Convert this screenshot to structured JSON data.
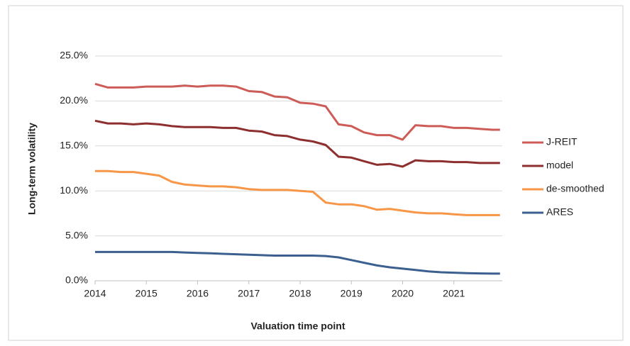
{
  "chart_data": {
    "type": "line",
    "x_label": "Valuation time point",
    "y_label": "Long-term volatility",
    "x": [
      2014,
      2014.25,
      2014.5,
      2014.75,
      2015,
      2015.25,
      2015.5,
      2015.75,
      2016,
      2016.25,
      2016.5,
      2016.75,
      2017,
      2017.25,
      2017.5,
      2017.75,
      2018,
      2018.25,
      2018.5,
      2018.75,
      2019,
      2019.25,
      2019.5,
      2019.75,
      2020,
      2020.25,
      2020.5,
      2020.75,
      2021,
      2021.25,
      2021.5,
      2021.75,
      2021.9
    ],
    "series": [
      {
        "name": "J-REIT",
        "color": "#cd5c57",
        "values": [
          21.9,
          21.5,
          21.5,
          21.5,
          21.6,
          21.6,
          21.6,
          21.7,
          21.6,
          21.7,
          21.7,
          21.6,
          21.1,
          21.0,
          20.5,
          20.4,
          19.8,
          19.7,
          19.4,
          17.4,
          17.2,
          16.5,
          16.2,
          16.2,
          15.7,
          17.3,
          17.2,
          17.2,
          17.0,
          17.0,
          16.9,
          16.8,
          16.8
        ]
      },
      {
        "name": "model",
        "color": "#8e2f2f",
        "values": [
          17.8,
          17.5,
          17.5,
          17.4,
          17.5,
          17.4,
          17.2,
          17.1,
          17.1,
          17.1,
          17.0,
          17.0,
          16.7,
          16.6,
          16.2,
          16.1,
          15.7,
          15.5,
          15.1,
          13.8,
          13.7,
          13.3,
          12.9,
          13.0,
          12.7,
          13.4,
          13.3,
          13.3,
          13.2,
          13.2,
          13.1,
          13.1,
          13.1
        ]
      },
      {
        "name": "de-smoothed",
        "color": "#f79646",
        "values": [
          12.2,
          12.2,
          12.1,
          12.1,
          11.9,
          11.7,
          11.0,
          10.7,
          10.6,
          10.5,
          10.5,
          10.4,
          10.2,
          10.1,
          10.1,
          10.1,
          10.0,
          9.9,
          8.7,
          8.5,
          8.5,
          8.3,
          7.9,
          8.0,
          7.8,
          7.6,
          7.5,
          7.5,
          7.4,
          7.3,
          7.3,
          7.3,
          7.3
        ]
      },
      {
        "name": "ARES",
        "color": "#3b6090",
        "values": [
          3.2,
          3.2,
          3.2,
          3.2,
          3.2,
          3.2,
          3.2,
          3.15,
          3.1,
          3.05,
          3.0,
          2.95,
          2.9,
          2.85,
          2.8,
          2.8,
          2.8,
          2.8,
          2.75,
          2.6,
          2.3,
          2.0,
          1.7,
          1.5,
          1.35,
          1.2,
          1.05,
          0.95,
          0.9,
          0.85,
          0.82,
          0.8,
          0.8
        ]
      }
    ],
    "xlim": [
      2014,
      2022
    ],
    "xticks": [
      2014,
      2015,
      2016,
      2017,
      2018,
      2019,
      2020,
      2021
    ],
    "ylim": [
      0,
      25
    ],
    "yticks": [
      {
        "value": 0,
        "label": "0.0%"
      },
      {
        "value": 5,
        "label": "5.0%"
      },
      {
        "value": 10,
        "label": "10.0%"
      },
      {
        "value": 15,
        "label": "15.0%"
      },
      {
        "value": 20,
        "label": "20.0%"
      },
      {
        "value": 25,
        "label": "25.0%"
      }
    ],
    "grid": true,
    "legend": "right"
  }
}
